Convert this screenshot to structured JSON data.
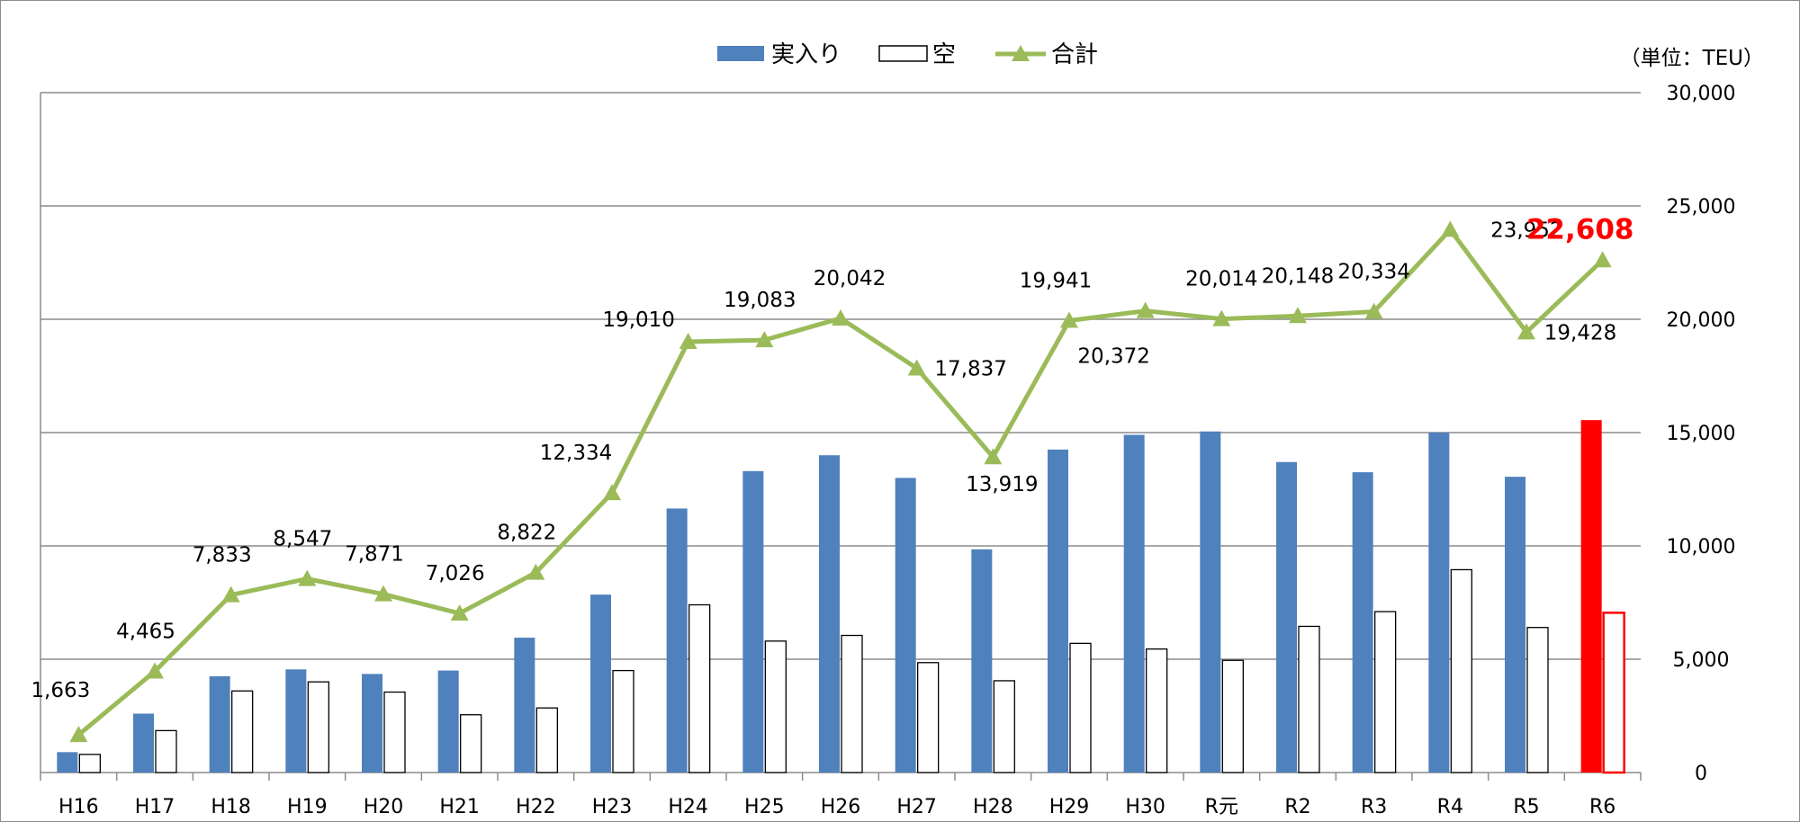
{
  "chart_data": {
    "type": "bar",
    "unit": "（単位：TEU）",
    "categories": [
      "H16",
      "H17",
      "H18",
      "H19",
      "H20",
      "H21",
      "H22",
      "H23",
      "H24",
      "H25",
      "H26",
      "H27",
      "H28",
      "H29",
      "H30",
      "R元",
      "R2",
      "R3",
      "R4",
      "R5",
      "R6"
    ],
    "series": [
      {
        "name": "実入り",
        "type": "bar",
        "color": "#4f81bd",
        "values": [
          900,
          2600,
          4250,
          4550,
          4350,
          4500,
          5950,
          7850,
          11650,
          13300,
          14000,
          13000,
          9850,
          14250,
          14900,
          15050,
          13700,
          13250,
          15000,
          13050,
          15550
        ]
      },
      {
        "name": "空",
        "type": "bar",
        "color": "#ffffff",
        "values": [
          800,
          1850,
          3600,
          4000,
          3550,
          2550,
          2850,
          4500,
          7400,
          5800,
          6050,
          4850,
          4050,
          5700,
          5450,
          4950,
          6450,
          7100,
          8950,
          6400,
          7050
        ]
      },
      {
        "name": "合計",
        "type": "line",
        "color": "#9bbb59",
        "values": [
          1663,
          4465,
          7833,
          8547,
          7871,
          7026,
          8822,
          12334,
          19010,
          19083,
          20042,
          17837,
          13919,
          19941,
          20372,
          20014,
          20148,
          20334,
          23952,
          19428,
          22608
        ],
        "labels": [
          "1,663",
          "4,465",
          "7,833",
          "8,547",
          "7,871",
          "7,026",
          "8,822",
          "12,334",
          "19,010",
          "19,083",
          "20,042",
          "17,837",
          "13,919",
          "19,941",
          "20,372",
          "20,014",
          "20,148",
          "20,334",
          "23,952",
          "19,428",
          "22,608"
        ]
      }
    ],
    "highlight": {
      "category": "R6",
      "color": "#ff0000"
    },
    "ylim": [
      0,
      30000
    ],
    "yticks": [
      0,
      5000,
      10000,
      15000,
      20000,
      25000,
      30000
    ],
    "ytick_labels": [
      "0",
      "5,000",
      "10,000",
      "15,000",
      "20,000",
      "25,000",
      "30,000"
    ],
    "y_axis_side": "right",
    "grid": true,
    "legend_position": "top-center",
    "title": "",
    "xlabel": "",
    "ylabel": ""
  }
}
